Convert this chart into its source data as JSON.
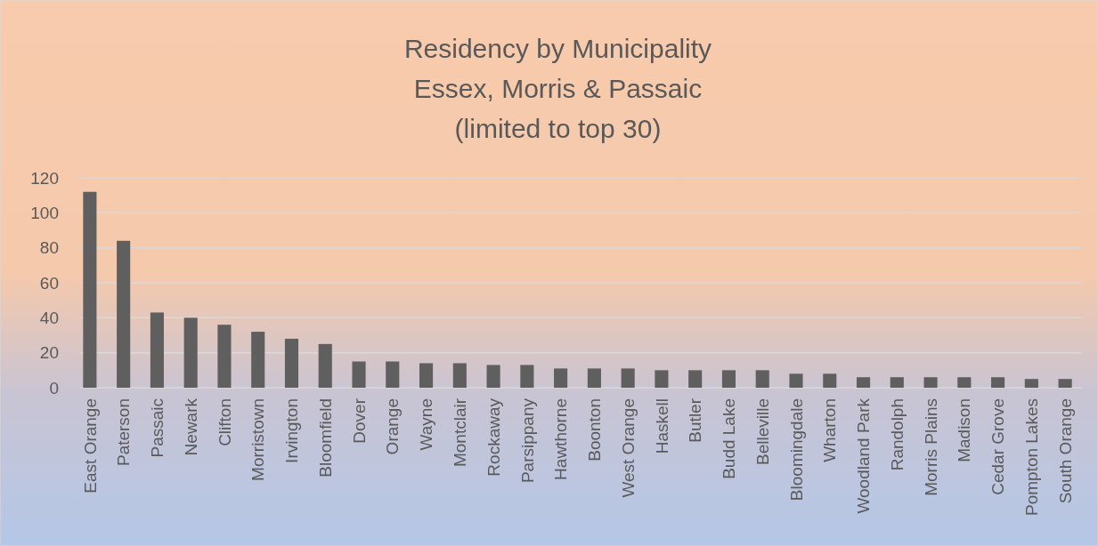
{
  "chart_data": {
    "type": "bar",
    "title": "Residency by Municipality\nEssex, Morris & Passaic\n(limited to top 30)",
    "categories": [
      "East Orange",
      "Paterson",
      "Passaic",
      "Newark",
      "Clifton",
      "Morristown",
      "Irvington",
      "Bloomfield",
      "Dover",
      "Orange",
      "Wayne",
      "Montclair",
      "Rockaway",
      "Parsippany",
      "Hawthorne",
      "Boonton",
      "West Orange",
      "Haskell",
      "Butler",
      "Budd Lake",
      "Belleville",
      "Bloomingdale",
      "Wharton",
      "Woodland Park",
      "Randolph",
      "Morris Plains",
      "Madison",
      "Cedar Grove",
      "Pompton Lakes",
      "South Orange"
    ],
    "values": [
      112,
      84,
      43,
      40,
      36,
      32,
      28,
      25,
      15,
      15,
      14,
      14,
      13,
      13,
      11,
      11,
      11,
      10,
      10,
      10,
      10,
      8,
      8,
      6,
      6,
      6,
      6,
      6,
      5,
      5
    ],
    "color": "#5f5f5f",
    "ylim": [
      0,
      120
    ],
    "yticks": [
      0,
      20,
      40,
      60,
      80,
      100,
      120
    ],
    "grid": "y"
  }
}
